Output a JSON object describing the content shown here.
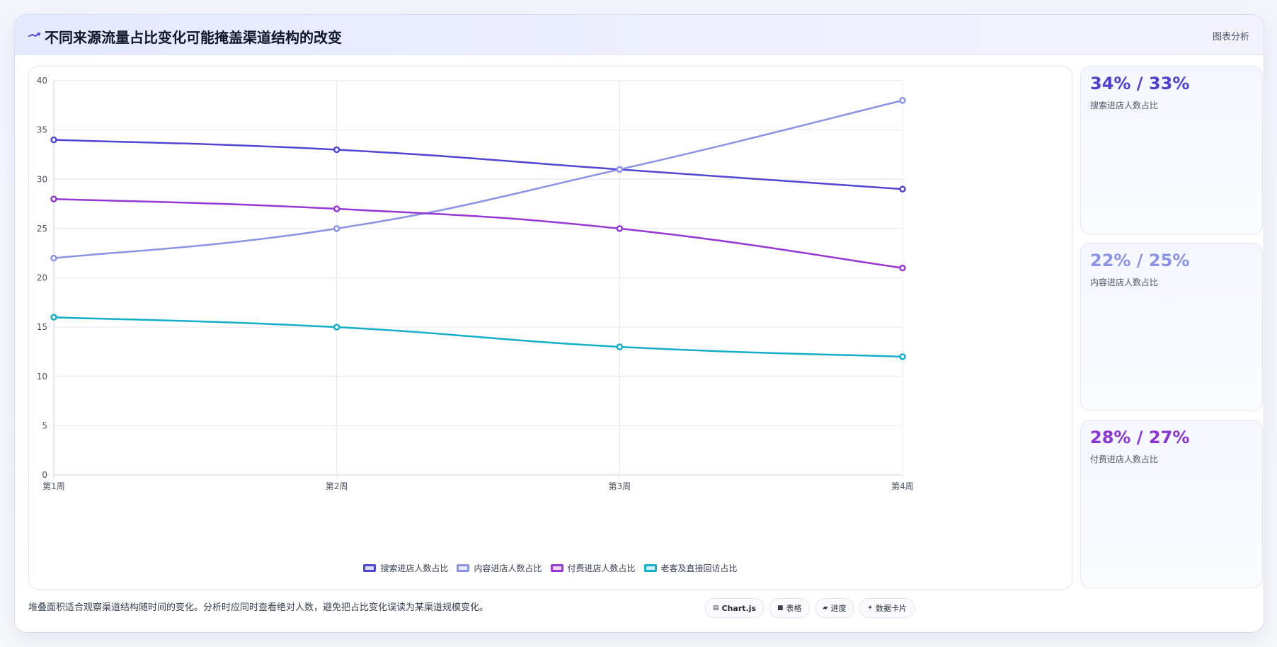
{
  "header": {
    "title": "不同来源流量占比变化可能掩盖渠道结构的改变",
    "tag": "图表分析"
  },
  "chart_data": {
    "type": "line",
    "categories": [
      "第1周",
      "第2周",
      "第3周",
      "第4周"
    ],
    "ylim": [
      0,
      40
    ],
    "yticks": [
      0,
      5,
      10,
      15,
      20,
      25,
      30,
      35,
      40
    ],
    "grid": true,
    "legend_position": "bottom",
    "series": [
      {
        "name": "搜索进店人数占比",
        "values": [
          34,
          33,
          31,
          29
        ],
        "color": "#5046d4"
      },
      {
        "name": "内容进店人数占比",
        "values": [
          22,
          25,
          31,
          38
        ],
        "color": "#8a93e6"
      },
      {
        "name": "付费进店人数占比",
        "values": [
          28,
          27,
          25,
          21
        ],
        "color": "#9637d6"
      },
      {
        "name": "老客及直接回访占比",
        "values": [
          16,
          15,
          13,
          12
        ],
        "color": "#14aec8"
      }
    ]
  },
  "kpis": [
    {
      "value": "34% / 33%",
      "label": "搜索进店人数占比",
      "color": "#4f3fd0"
    },
    {
      "value": "22% / 25%",
      "label": "内容进店人数占比",
      "color": "#8a93e6"
    },
    {
      "value": "28% / 27%",
      "label": "付费进店人数占比",
      "color": "#8b34d6"
    }
  ],
  "footnote": "堆叠面积适合观察渠道结构随时间的变化。分析时应同时查看绝对人数，避免把占比变化误读为某渠道规模变化。",
  "chips": [
    {
      "icon": "▤",
      "icon_name": "chart-icon",
      "label": "Chart.js"
    },
    {
      "icon": "■",
      "icon_name": "table-icon",
      "label": "表格"
    },
    {
      "icon": "▰",
      "icon_name": "progress-icon",
      "label": "进度"
    },
    {
      "icon": "✦",
      "icon_name": "card-icon",
      "label": "数据卡片"
    }
  ]
}
